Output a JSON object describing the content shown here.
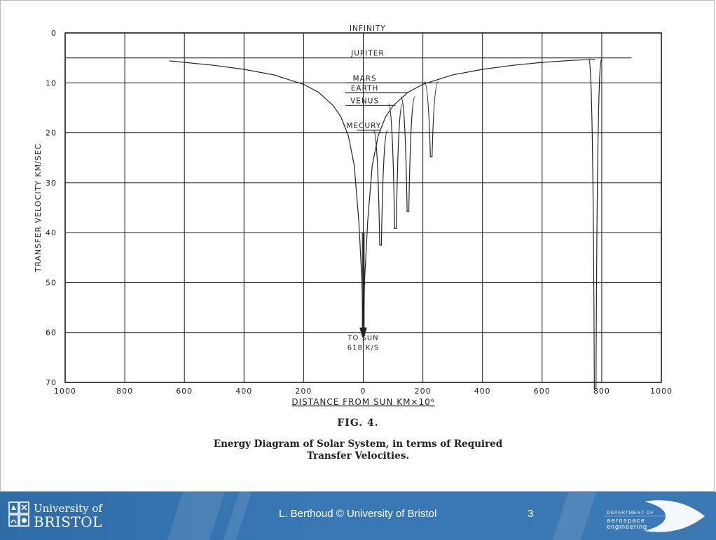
{
  "chart_data": {
    "type": "line",
    "title": "",
    "xlabel": "DISTANCE FROM SUN KM×10⁶",
    "ylabel": "TRANSFER VELOCITY KM/SEC",
    "xlim": [
      -1000,
      1000
    ],
    "ylim": [
      0,
      70
    ],
    "y_reversed": true,
    "grid": true,
    "x_ticks": [
      -1000,
      -800,
      -600,
      -400,
      -200,
      0,
      200,
      400,
      600,
      800,
      1000
    ],
    "x_tick_labels": [
      "1000",
      "800",
      "600",
      "400",
      "200",
      "0",
      "200",
      "400",
      "600",
      "800",
      "1000"
    ],
    "y_ticks": [
      0,
      10,
      20,
      30,
      40,
      50,
      60,
      70
    ],
    "y_tick_labels": [
      "0",
      "10",
      "20",
      "30",
      "40",
      "50",
      "60",
      "70"
    ],
    "series": [
      {
        "x": [
          -650,
          -500,
          -400,
          -300,
          -200,
          -150,
          -100,
          -75,
          -50,
          -30,
          -15,
          -5,
          0,
          5,
          15,
          30,
          50,
          75,
          100,
          150,
          200,
          300,
          400,
          500,
          600,
          700,
          778
        ],
        "y": [
          5.6,
          6.5,
          7.3,
          8.4,
          10.3,
          11.9,
          14.6,
          16.8,
          20.6,
          26.6,
          37.6,
          49.0,
          60.0,
          49.0,
          37.6,
          26.6,
          20.6,
          16.8,
          14.6,
          11.9,
          10.3,
          8.4,
          7.3,
          6.5,
          5.9,
          5.5,
          5.3
        ]
      }
    ],
    "planet_levels": [
      {
        "name": "INFINITY",
        "velocity": 0
      },
      {
        "name": "JUPITER",
        "velocity": 5
      },
      {
        "name": "MARS",
        "velocity": 10
      },
      {
        "name": "EARTH",
        "velocity": 12
      },
      {
        "name": "VENUS",
        "velocity": 14.5
      },
      {
        "name": "MECURY",
        "velocity": 19.5
      }
    ],
    "planet_wells": [
      {
        "name": "MECURY",
        "distance": 58,
        "top": 19.5,
        "depth": 23
      },
      {
        "name": "VENUS",
        "distance": 108,
        "top": 14.2,
        "depth": 25
      },
      {
        "name": "EARTH",
        "distance": 150,
        "top": 12.8,
        "depth": 23
      },
      {
        "name": "MARS",
        "distance": 228,
        "top": 9.8,
        "depth": 15
      },
      {
        "name": "JUPITER",
        "distance": 778,
        "top": 5.2,
        "depth": 66
      }
    ],
    "annotations": [
      "TO SUN",
      "618 K/S"
    ]
  },
  "caption": {
    "figure": "FIG. 4.",
    "line1": "Energy Diagram of Solar System, in terms of Required",
    "line2": "Transfer Velocities."
  },
  "footer": {
    "university_line1": "University of",
    "university_line2": "BRISTOL",
    "credit": "L. Berthoud © University of Bristol",
    "page_number": "3",
    "dept_line1": "DEPARTMENT OF",
    "dept_line2": "aerospace",
    "dept_line3": "engineering"
  },
  "colors": {
    "footer_blue": "#3a78b3",
    "ink": "#222222",
    "grid": "#1a1a1a"
  }
}
